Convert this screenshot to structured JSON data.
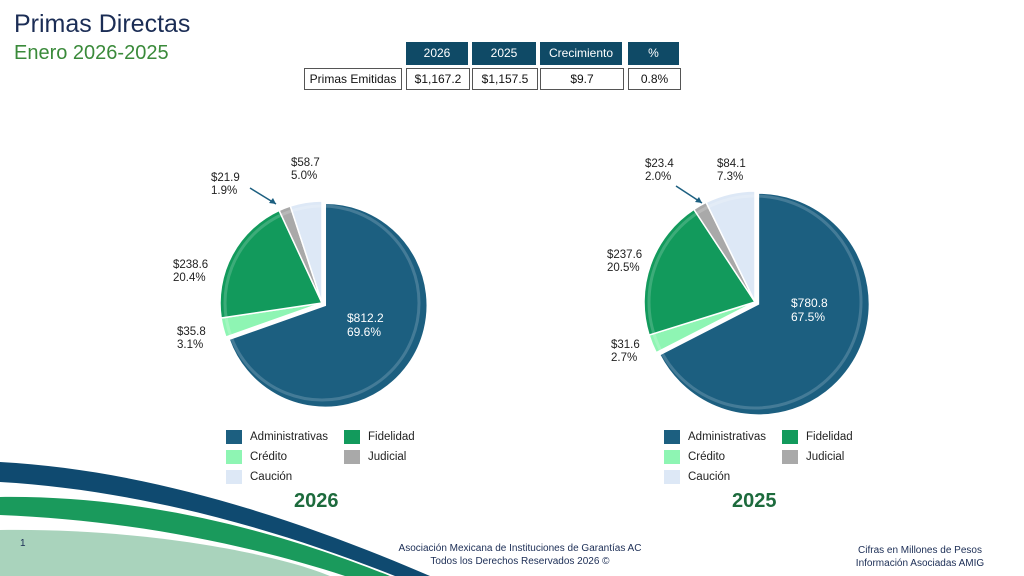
{
  "header": {
    "title": "Primas Directas",
    "subtitle": "Enero 2026-2025"
  },
  "summary_table": {
    "headers": [
      "2026",
      "2025",
      "Crecimiento",
      "%"
    ],
    "row_label": "Primas Emitidas",
    "values": [
      "$1,167.2",
      "$1,157.5",
      "$9.7",
      "0.8%"
    ]
  },
  "colors": {
    "Administrativas": "#1c5f80",
    "Credito": "#8ef5b3",
    "Fidelidad": "#129a5c",
    "Judicial": "#a9a9a9",
    "Caucion": "#dde8f6"
  },
  "chart_data": [
    {
      "type": "pie",
      "title": "2026",
      "categories": [
        "Administrativas",
        "Crédito",
        "Fidelidad",
        "Judicial",
        "Caución"
      ],
      "values": [
        812.2,
        35.8,
        238.6,
        21.9,
        58.7
      ],
      "percents": [
        69.6,
        3.1,
        20.4,
        1.9,
        5.0
      ],
      "labels": [
        [
          "$812.2",
          "69.6%"
        ],
        [
          "$35.8",
          "3.1%"
        ],
        [
          "$238.6",
          "20.4%"
        ],
        [
          "$21.9",
          "1.9%"
        ],
        [
          "$58.7",
          "5.0%"
        ]
      ],
      "legend": "bottom"
    },
    {
      "type": "pie",
      "title": "2025",
      "categories": [
        "Administrativas",
        "Crédito",
        "Fidelidad",
        "Judicial",
        "Caución"
      ],
      "values": [
        780.8,
        31.6,
        237.6,
        23.4,
        84.1
      ],
      "percents": [
        67.5,
        2.7,
        20.5,
        2.0,
        7.3
      ],
      "labels": [
        [
          "$780.8",
          "67.5%"
        ],
        [
          "$31.6",
          "2.7%"
        ],
        [
          "$237.6",
          "20.5%"
        ],
        [
          "$23.4",
          "2.0%"
        ],
        [
          "$84.1",
          "7.3%"
        ]
      ],
      "legend": "bottom"
    }
  ],
  "footer": {
    "page": "1",
    "org_line1": "Asociación Mexicana de Instituciones de Garantías AC",
    "org_line2": "Todos los Derechos Reservados 2026 ©",
    "note_line1": "Cifras en Millones de Pesos",
    "note_line2": "Información Asociadas AMIG"
  }
}
